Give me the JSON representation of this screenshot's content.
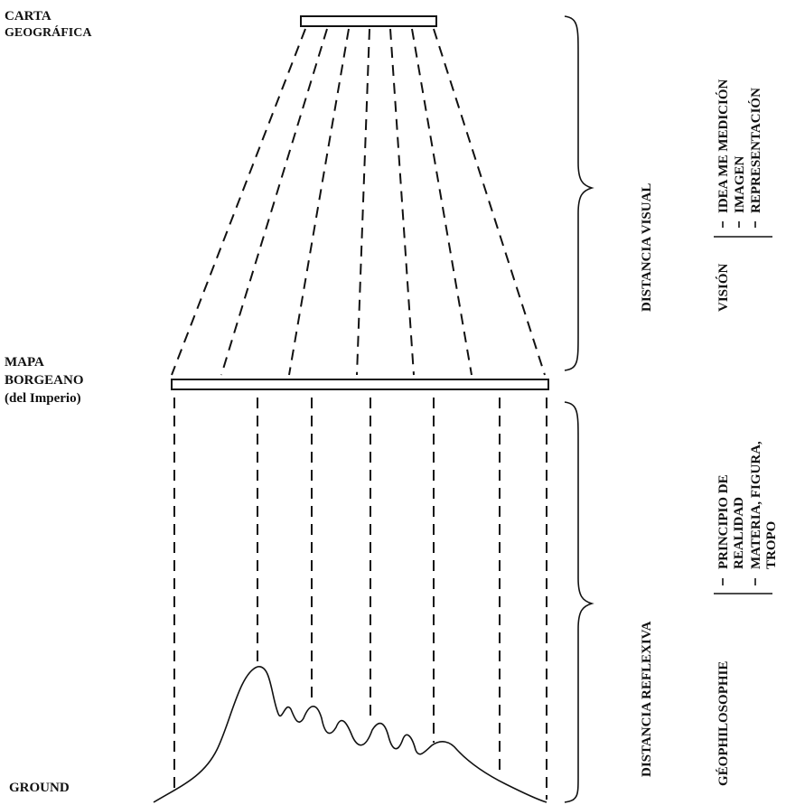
{
  "left_labels": {
    "carta": [
      "CARTA",
      "GEOGRÁFICA"
    ],
    "mapa": [
      "MAPA",
      "BORGEANO",
      "(del Imperio)"
    ],
    "ground": "GROUND"
  },
  "distances": {
    "visual": "DISTANCIA VISUAL",
    "reflexiva": "DISTANCIA REFLEXIVA"
  },
  "vision": {
    "title": "VISIÓN",
    "items": [
      "IDEA ME MEDICIÓN",
      "IMAGEN",
      "REPRESENTACIÓN"
    ]
  },
  "geophilosophie": {
    "title": "GÉOPHILOSOPHIE",
    "items": [
      [
        "PRINCIPIO DE",
        "REALIDAD"
      ],
      [
        "MATERIA, FIGURA,",
        "TROPO"
      ]
    ]
  }
}
